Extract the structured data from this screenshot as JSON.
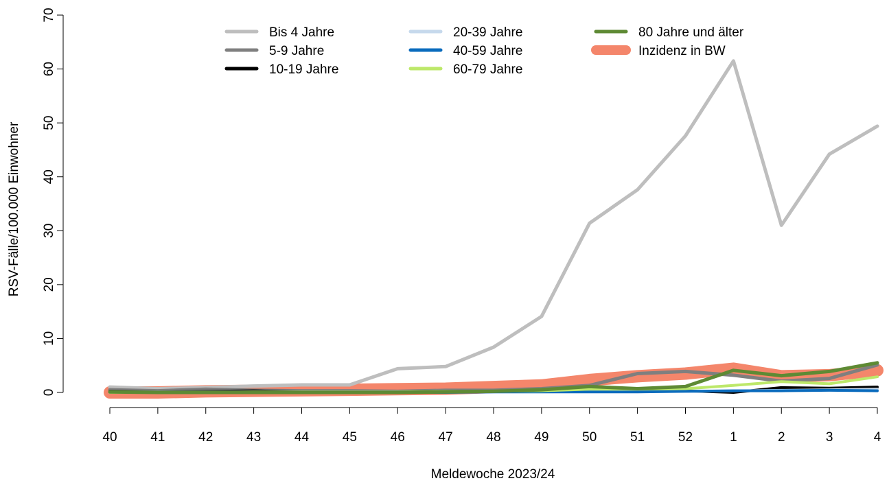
{
  "chart_data": {
    "type": "line",
    "xlabel": "Meldewoche 2023/24",
    "ylabel": "RSV-Fälle/100.000 Einwohner",
    "categories": [
      "40",
      "41",
      "42",
      "43",
      "44",
      "45",
      "46",
      "47",
      "48",
      "49",
      "50",
      "51",
      "52",
      "1",
      "2",
      "3",
      "4"
    ],
    "ylim": [
      0,
      70
    ],
    "yticks": [
      0,
      10,
      20,
      30,
      40,
      50,
      60,
      70
    ],
    "legend_position": "top",
    "series": [
      {
        "name": "Incidenz in BW",
        "color": "#f4866b",
        "width": 18,
        "values": [
          0,
          0,
          0.2,
          0.3,
          0.4,
          0.5,
          0.6,
          0.7,
          1.0,
          1.3,
          2.3,
          3.0,
          3.5,
          4.4,
          3.0,
          3.2,
          4.1
        ]
      },
      {
        "name": "Bis 4 Jahre",
        "color": "#bebebe",
        "width": 5,
        "values": [
          1.0,
          0.7,
          0.9,
          1.2,
          1.4,
          1.4,
          4.4,
          4.8,
          8.4,
          14.1,
          31.4,
          37.6,
          47.6,
          61.5,
          31.0,
          44.2,
          49.4
        ]
      },
      {
        "name": "5-9 Jahre",
        "color": "#7f7f7f",
        "width": 5,
        "values": [
          0.5,
          0.3,
          0.6,
          0.4,
          0.3,
          0.3,
          0.2,
          0.4,
          0.4,
          0.7,
          1.3,
          3.5,
          3.9,
          3.2,
          2.1,
          2.6,
          5.1
        ]
      },
      {
        "name": "10-19 Jahre",
        "color": "#000000",
        "width": 4,
        "values": [
          0.2,
          0.1,
          0.2,
          0.3,
          0.1,
          0.1,
          0.1,
          0.2,
          0.2,
          0.2,
          0.2,
          0.2,
          0.3,
          0.0,
          0.9,
          0.8,
          1.0
        ]
      },
      {
        "name": "20-39 Jahre",
        "color": "#c6d9ec",
        "width": 4,
        "values": [
          0.1,
          0.1,
          0.1,
          0.1,
          0.1,
          0.1,
          0.1,
          0.1,
          0.1,
          0.1,
          0.2,
          0.2,
          0.2,
          0.3,
          0.4,
          0.5,
          0.6
        ]
      },
      {
        "name": "40-59 Jahre",
        "color": "#0a6bbd",
        "width": 4,
        "values": [
          0.0,
          0.0,
          0.0,
          0.0,
          0.0,
          0.0,
          0.0,
          0.0,
          0.1,
          0.1,
          0.1,
          0.1,
          0.2,
          0.3,
          0.3,
          0.4,
          0.3
        ]
      },
      {
        "name": "60-79 Jahre",
        "color": "#bde86a",
        "width": 4,
        "values": [
          0.0,
          0.0,
          0.0,
          0.1,
          0.1,
          0.1,
          0.1,
          0.2,
          0.2,
          0.3,
          0.6,
          0.6,
          0.7,
          1.3,
          2.0,
          1.6,
          2.9
        ]
      },
      {
        "name": "80 Jahre und älter",
        "color": "#5e8a34",
        "width": 5,
        "values": [
          0.1,
          0.0,
          0.0,
          0.0,
          0.0,
          0.0,
          0.0,
          0.1,
          0.2,
          0.5,
          1.1,
          0.7,
          1.1,
          4.1,
          3.1,
          3.9,
          5.5
        ]
      }
    ],
    "legend_columns": [
      [
        "Bis 4 Jahre",
        "5-9 Jahre",
        "10-19 Jahre"
      ],
      [
        "20-39 Jahre",
        "40-59 Jahre",
        "60-79 Jahre"
      ],
      [
        "80 Jahre und älter",
        "Inzidenz in BW"
      ]
    ]
  }
}
